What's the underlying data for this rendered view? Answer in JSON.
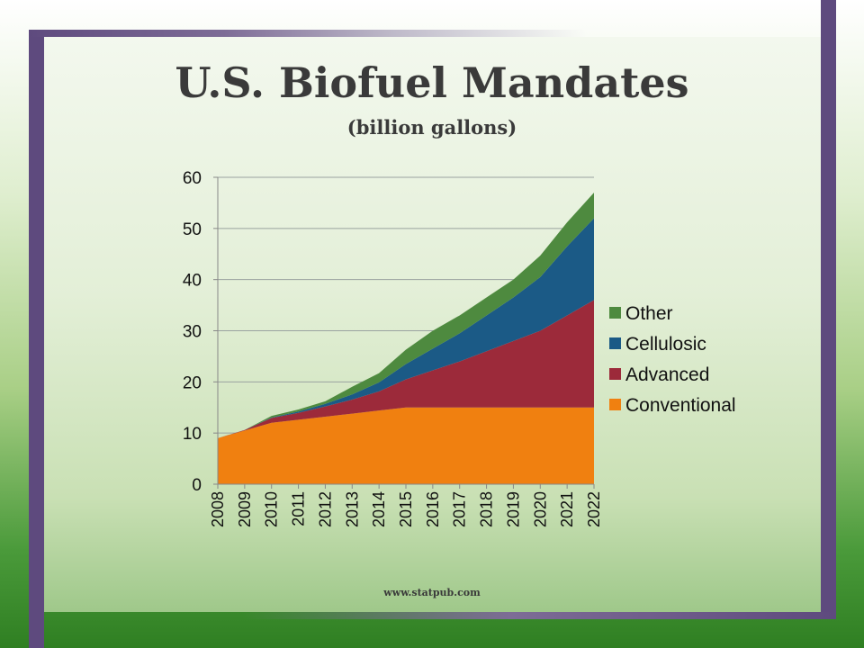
{
  "slide": {
    "title": "U.S. Biofuel Mandates",
    "subtitle": "(billion gallons)",
    "footer": "www.statpub.com"
  },
  "chart_data": {
    "type": "area",
    "stacked": true,
    "title": "U.S. Biofuel Mandates",
    "subtitle": "(billion gallons)",
    "xlabel": "",
    "ylabel": "",
    "x": [
      "2008",
      "2009",
      "2010",
      "2011",
      "2012",
      "2013",
      "2014",
      "2015",
      "2016",
      "2017",
      "2018",
      "2019",
      "2020",
      "2021",
      "2022"
    ],
    "ylim": [
      0,
      60
    ],
    "yticks": [
      0,
      10,
      20,
      30,
      40,
      50,
      60
    ],
    "grid": true,
    "legend_position": "right",
    "series": [
      {
        "name": "Conventional",
        "color": "#f08010",
        "values": [
          9,
          10.5,
          12,
          12.6,
          13.2,
          13.8,
          14.4,
          15,
          15,
          15,
          15,
          15,
          15,
          15,
          15
        ]
      },
      {
        "name": "Advanced",
        "color": "#9c2a3a",
        "values": [
          0,
          0.1,
          0.95,
          1.35,
          2.0,
          2.75,
          3.75,
          5.5,
          7.25,
          9.0,
          11.0,
          13.0,
          15.0,
          18.0,
          21.0
        ]
      },
      {
        "name": "Cellulosic",
        "color": "#1b5a86",
        "values": [
          0,
          0,
          0.1,
          0.25,
          0.5,
          1.0,
          1.75,
          3.0,
          4.25,
          5.5,
          7.0,
          8.5,
          10.5,
          13.5,
          16.0
        ]
      },
      {
        "name": "Other",
        "color": "#4e8a3f",
        "values": [
          0,
          0,
          0.3,
          0.4,
          0.5,
          1.5,
          1.8,
          2.8,
          3.5,
          3.5,
          3.5,
          3.5,
          4.2,
          4.7,
          5.0
        ]
      }
    ]
  }
}
